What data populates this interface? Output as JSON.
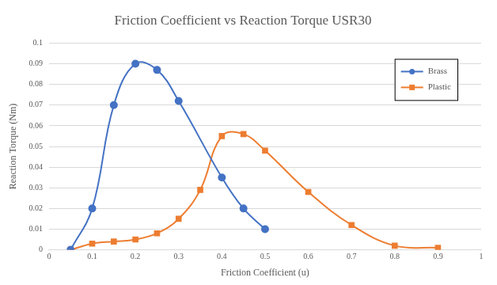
{
  "chart_data": {
    "type": "line",
    "title": "Friction Coefficient vs Reaction Torque USR30",
    "x_label": "Friction Coefficient (u)",
    "y_label": "Reaction Torque (Nm)",
    "xlim": [
      0,
      1
    ],
    "xticks": [
      0,
      0.1,
      0.2,
      0.3,
      0.4,
      0.5,
      0.6,
      0.7,
      0.8,
      0.9,
      1
    ],
    "ylim": [
      0,
      0.1
    ],
    "yticks": [
      0,
      0.01,
      0.02,
      0.03,
      0.04,
      0.05,
      0.06,
      0.07,
      0.08,
      0.09,
      0.1
    ],
    "grid": "y",
    "legend": "top-right",
    "series": [
      {
        "name": "Brass",
        "color": "#4472c4",
        "marker": "circle",
        "line_style": "smooth",
        "x": [
          0.05,
          0.1,
          0.15,
          0.2,
          0.25,
          0.3,
          0.4,
          0.45,
          0.5
        ],
        "values": [
          0,
          0.02,
          0.07,
          0.09,
          0.087,
          0.072,
          0.035,
          0.02,
          0.01
        ]
      },
      {
        "name": "Plastic",
        "color": "#ed7d31",
        "marker": "square",
        "line_style": "smooth",
        "x": [
          0.05,
          0.1,
          0.15,
          0.2,
          0.25,
          0.3,
          0.35,
          0.4,
          0.45,
          0.5,
          0.6,
          0.7,
          0.8,
          0.9
        ],
        "values": [
          0,
          0.003,
          0.004,
          0.005,
          0.008,
          0.015,
          0.029,
          0.055,
          0.056,
          0.048,
          0.028,
          0.012,
          0.002,
          0.001
        ]
      }
    ]
  }
}
